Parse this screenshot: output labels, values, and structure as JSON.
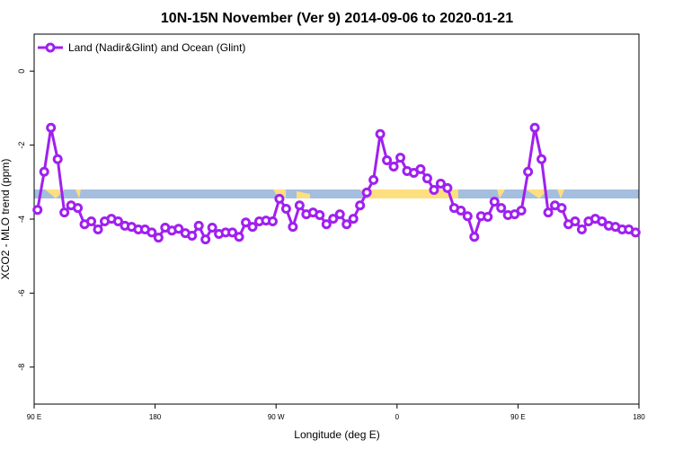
{
  "chart_data": {
    "type": "line",
    "title": "10N-15N November (Ver 9)   2014-09-06 to 2020-01-21",
    "x_label": "Longitude (deg E)",
    "y_label": "XCO2 - MLO trend (ppm)",
    "xlim": [
      90,
      540
    ],
    "xticks": [
      {
        "value": 90,
        "label": "90 E"
      },
      180,
      {
        "value": 270,
        "label": "90 W"
      },
      {
        "value": 360,
        "label": "0"
      },
      {
        "value": 450,
        "label": "90 E"
      },
      {
        "value": 540,
        "label": "180"
      }
    ],
    "ylim": [
      -9,
      1
    ],
    "yticks": [
      0,
      -2,
      -4,
      -6,
      -8
    ],
    "legend_position": "top-left",
    "x": [
      92.5,
      97.5,
      102.5,
      107.5,
      112.5,
      117.5,
      122.5,
      127.5,
      132.5,
      137.5,
      142.5,
      147.5,
      152.5,
      157.5,
      162.5,
      167.5,
      172.5,
      177.5,
      182.5,
      187.5,
      192.5,
      197.5,
      202.5,
      207.5,
      212.5,
      217.5,
      222.5,
      227.5,
      232.5,
      237.5,
      242.5,
      247.5,
      252.5,
      257.5,
      262.5,
      267.5,
      272.5,
      277.5,
      282.5,
      287.5,
      292.5,
      297.5,
      302.5,
      307.5,
      312.5,
      317.5,
      322.5,
      327.5,
      332.5,
      337.5,
      342.5,
      347.5,
      352.5,
      357.5,
      362.5,
      367.5,
      372.5,
      377.5,
      382.5,
      387.5,
      392.5,
      397.5,
      402.5,
      407.5,
      412.5,
      417.5,
      422.5,
      427.5,
      432.5,
      437.5,
      442.5,
      447.5,
      452.5,
      457.5,
      462.5,
      467.5,
      472.5,
      477.5,
      482.5,
      487.5,
      492.5,
      497.5,
      502.5,
      507.5,
      512.5,
      517.5,
      522.5,
      527.5,
      532.5,
      537.5
    ],
    "series": [
      {
        "name": "Land (Nadir&Glint) and Ocean (Glint)",
        "color": "#a020f0",
        "values": [
          -3.75,
          -2.72,
          -1.53,
          -2.38,
          -3.82,
          -3.63,
          -3.7,
          -4.14,
          -4.06,
          -4.28,
          -4.06,
          -3.99,
          -4.06,
          -4.18,
          -4.21,
          -4.28,
          -4.28,
          -4.36,
          -4.5,
          -4.23,
          -4.31,
          -4.26,
          -4.38,
          -4.45,
          -4.18,
          -4.55,
          -4.23,
          -4.4,
          -4.36,
          -4.36,
          -4.48,
          -4.09,
          -4.21,
          -4.06,
          -4.04,
          -4.06,
          -3.45,
          -3.72,
          -4.21,
          -3.63,
          -3.87,
          -3.82,
          -3.89,
          -4.14,
          -3.99,
          -3.87,
          -4.14,
          -3.99,
          -3.63,
          -3.28,
          -2.94,
          -1.7,
          -2.41,
          -2.58,
          -2.34,
          -2.7,
          -2.75,
          -2.65,
          -2.9,
          -3.21,
          -3.04,
          -3.16,
          -3.7,
          -3.77,
          -3.92,
          -4.48,
          -3.92,
          -3.94,
          -3.53,
          -3.7,
          -3.89,
          -3.87,
          -3.77,
          -2.72,
          -1.53,
          -2.38,
          -3.82,
          -3.63,
          -3.7,
          -4.14,
          -4.06,
          -4.28,
          -4.06,
          -3.99,
          -4.06,
          -4.18,
          -4.21,
          -4.28,
          -4.28,
          -4.36
        ]
      }
    ]
  }
}
